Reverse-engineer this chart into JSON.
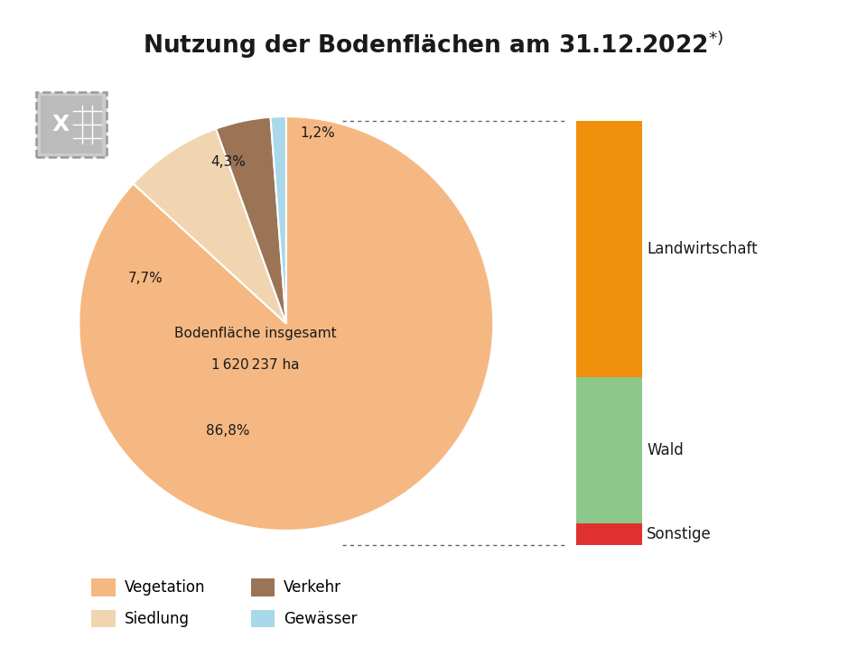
{
  "title": "Nutzung der Bodenflächen am 31.12.2022",
  "title_superscript": "*)",
  "center_text_line1": "Bodenfläche insgesamt",
  "center_text_line2": "1 620 237 ha",
  "pie_values": [
    86.8,
    7.7,
    4.3,
    1.2
  ],
  "pie_labels": [
    "86,8%",
    "7,7%",
    "4,3%",
    "1,2%"
  ],
  "pie_colors": [
    "#F5B882",
    "#F0D5B0",
    "#9B7355",
    "#A8D8EA"
  ],
  "pie_legend_labels": [
    "Vegetation",
    "Siedlung",
    "Verkehr",
    "Gewässer"
  ],
  "bar_segments": [
    {
      "label": "Landwirtschaft",
      "value": 52.5,
      "color": "#F0900A"
    },
    {
      "label": "Wald",
      "value": 30.0,
      "color": "#8DC78A"
    },
    {
      "label": "Sonstige",
      "value": 4.3,
      "color": "#E03030"
    }
  ],
  "background_color": "#FFFFFF",
  "dotted_line_color": "#555555",
  "label_color": "#1a1a1a",
  "title_color": "#1a1a1a"
}
